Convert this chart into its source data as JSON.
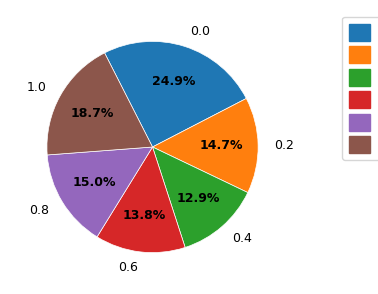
{
  "labels": [
    "0.0",
    "0.2",
    "0.4",
    "0.6",
    "0.8",
    "1.0"
  ],
  "values": [
    24.9,
    14.7,
    12.9,
    13.8,
    15.0,
    18.7
  ],
  "colors": [
    "#1f77b4",
    "#ff7f0e",
    "#2ca02c",
    "#d62728",
    "#9467bd",
    "#8c564b"
  ],
  "outer_labels": [
    "0.0",
    "0.2",
    "0.4",
    "0.6",
    "0.8",
    "1.0"
  ],
  "startangle": 117,
  "figsize": [
    3.78,
    2.94
  ],
  "dpi": 100,
  "legend_fontsize": 10,
  "pct_fontsize": 9,
  "label_fontsize": 9
}
